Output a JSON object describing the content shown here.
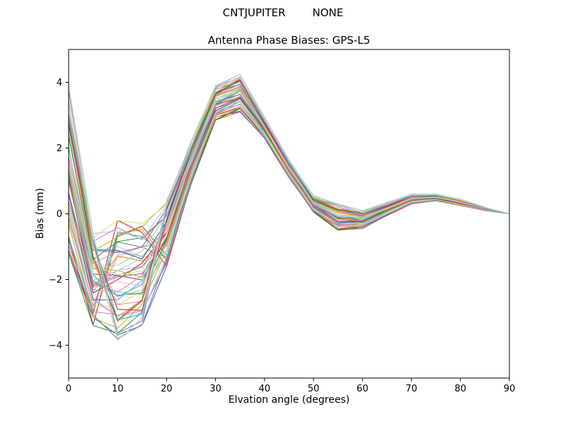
{
  "chart_data": {
    "type": "line",
    "header_left": "CNTJUPITER",
    "header_right": "NONE",
    "title": "Antenna Phase Biases: GPS-L5",
    "xlabel": "Elvation angle (degrees)",
    "ylabel": "Bias (mm)",
    "xlim": [
      0,
      90
    ],
    "ylim": [
      -5,
      5
    ],
    "xticks": [
      0,
      10,
      20,
      30,
      40,
      50,
      60,
      70,
      80,
      90
    ],
    "yticks": [
      -4,
      -2,
      0,
      2,
      4
    ],
    "grid": false,
    "legend": false,
    "x": [
      0,
      5,
      10,
      15,
      20,
      25,
      30,
      35,
      40,
      45,
      50,
      55,
      60,
      65,
      70,
      75,
      80,
      85,
      90
    ],
    "n_series": 50,
    "series_note": "Dense bundle of ~50 per-channel antenna phase bias curves; individual values not labeled, envelope read from plot",
    "envelope_high": [
      3.9,
      -0.6,
      -0.2,
      -0.3,
      0.4,
      2.2,
      3.9,
      4.25,
      2.95,
      1.65,
      0.55,
      0.3,
      0.1,
      0.35,
      0.6,
      0.6,
      0.45,
      0.2,
      0.0
    ],
    "envelope_low": [
      -1.2,
      -3.4,
      -3.85,
      -3.4,
      -1.6,
      0.9,
      2.85,
      3.1,
      2.3,
      1.1,
      0.05,
      -0.5,
      -0.45,
      -0.05,
      0.3,
      0.4,
      0.25,
      0.1,
      0.0
    ],
    "mean": [
      1.35,
      -2.0,
      -2.0,
      -1.85,
      -0.6,
      1.55,
      3.4,
      3.7,
      2.6,
      1.4,
      0.3,
      -0.1,
      -0.2,
      0.15,
      0.45,
      0.5,
      0.35,
      0.15,
      0.0
    ],
    "axis_color": "#000000",
    "palette": [
      "#1f77b4",
      "#ff7f0e",
      "#2ca02c",
      "#d62728",
      "#9467bd",
      "#8c564b",
      "#e377c2",
      "#7f7f7f",
      "#bcbd22",
      "#17becf",
      "#aec7e8",
      "#f7b6d2",
      "#dbdb8d",
      "#9edae5",
      "#c49c94",
      "#ff9896",
      "#98df8a",
      "#c5b0d5"
    ]
  }
}
